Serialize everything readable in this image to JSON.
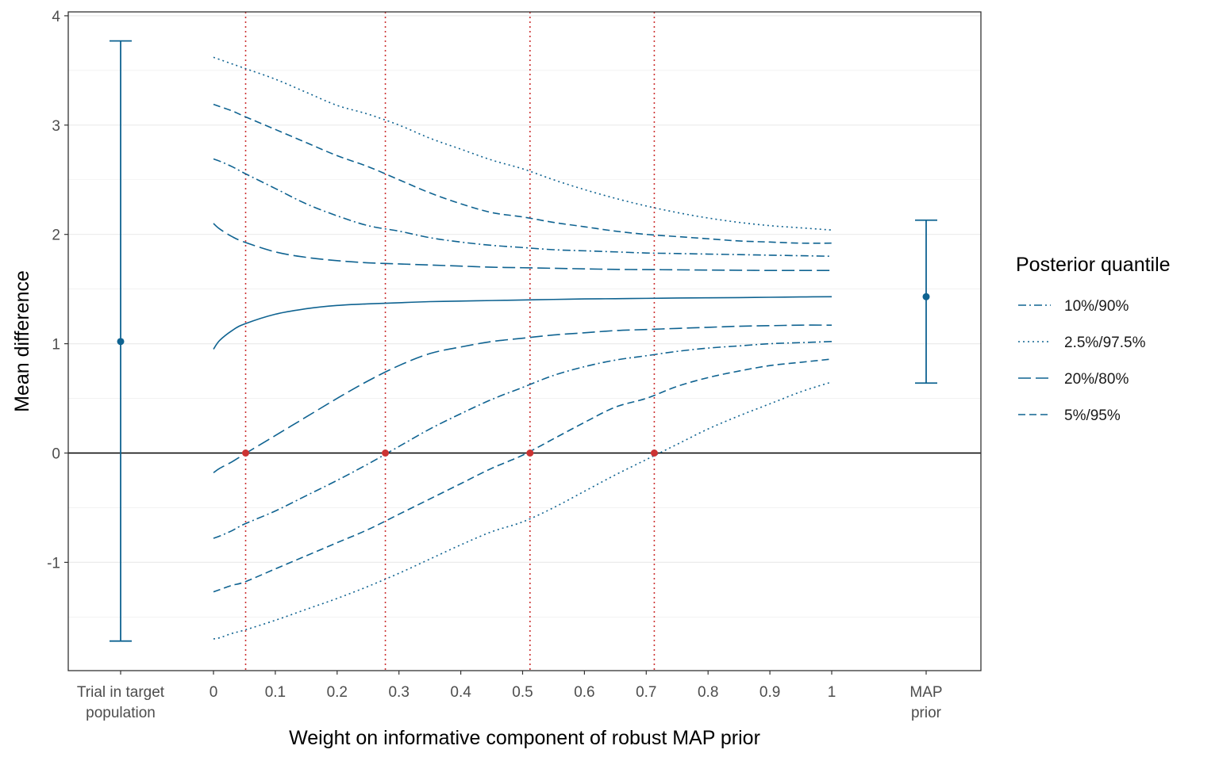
{
  "chart_data": {
    "type": "line",
    "title": "",
    "xlabel": "Weight on informative component of robust MAP prior",
    "ylabel": "Mean difference",
    "xlim": [
      0,
      1
    ],
    "ylim": [
      -1.98,
      4.05
    ],
    "grid": true,
    "legend_position": "right",
    "colors": {
      "series": "#0f6391",
      "crossing": "#cc3333",
      "zero_line": "#000000"
    },
    "x_ticks": [
      "0",
      "0.1",
      "0.2",
      "0.3",
      "0.4",
      "0.5",
      "0.6",
      "0.7",
      "0.8",
      "0.9",
      "1"
    ],
    "x_tick_values": [
      0,
      0.1,
      0.2,
      0.3,
      0.4,
      0.5,
      0.6,
      0.7,
      0.8,
      0.9,
      1
    ],
    "y_ticks": [
      "-1",
      "0",
      "1",
      "2",
      "3",
      "4"
    ],
    "y_tick_values": [
      -1,
      0,
      1,
      2,
      3,
      4
    ],
    "side_categories": {
      "left": [
        "Trial in target",
        "population"
      ],
      "right": [
        "MAP",
        "prior"
      ]
    },
    "error_bars": [
      {
        "side": "left",
        "estimate": 1.02,
        "lower": -1.72,
        "upper": 3.77
      },
      {
        "side": "right",
        "estimate": 1.43,
        "lower": 0.64,
        "upper": 2.13
      }
    ],
    "x": [
      0,
      0.01,
      0.03,
      0.05,
      0.1,
      0.15,
      0.2,
      0.25,
      0.3,
      0.35,
      0.4,
      0.45,
      0.5,
      0.55,
      0.6,
      0.65,
      0.7,
      0.75,
      0.8,
      0.85,
      0.9,
      0.95,
      1.0
    ],
    "legend": {
      "title": "Posterior quantile",
      "entries": [
        {
          "label": "10%/90%",
          "dash": "10,4,2,4"
        },
        {
          "label": "2.5%/97.5%",
          "dash": "2,4"
        },
        {
          "label": "20%/80%",
          "dash": "16,6"
        },
        {
          "label": "5%/95%",
          "dash": "9,5"
        }
      ]
    },
    "series": [
      {
        "quantile": "median",
        "dash": "",
        "values": [
          0.95,
          1.03,
          1.12,
          1.18,
          1.27,
          1.32,
          1.35,
          1.365,
          1.375,
          1.385,
          1.39,
          1.395,
          1.4,
          1.405,
          1.41,
          1.412,
          1.415,
          1.418,
          1.42,
          1.422,
          1.425,
          1.428,
          1.43
        ]
      },
      {
        "quantile": "2.5%/97.5%",
        "dash": "2,4",
        "values": [
          3.62,
          3.6,
          3.56,
          3.52,
          3.42,
          3.3,
          3.18,
          3.1,
          3.0,
          2.88,
          2.78,
          2.68,
          2.6,
          2.5,
          2.41,
          2.33,
          2.26,
          2.2,
          2.15,
          2.11,
          2.08,
          2.06,
          2.04
        ]
      },
      {
        "quantile": "2.5%/97.5%",
        "dash": "2,4",
        "values": [
          -1.7,
          -1.69,
          -1.65,
          -1.62,
          -1.53,
          -1.43,
          -1.33,
          -1.22,
          -1.1,
          -0.97,
          -0.84,
          -0.72,
          -0.63,
          -0.5,
          -0.35,
          -0.2,
          -0.06,
          0.08,
          0.22,
          0.34,
          0.45,
          0.56,
          0.65
        ]
      },
      {
        "quantile": "5%/95%",
        "dash": "9,5",
        "values": [
          3.19,
          3.17,
          3.13,
          3.08,
          2.96,
          2.84,
          2.72,
          2.62,
          2.5,
          2.38,
          2.28,
          2.2,
          2.16,
          2.11,
          2.07,
          2.03,
          2.0,
          1.98,
          1.96,
          1.94,
          1.93,
          1.92,
          1.92
        ]
      },
      {
        "quantile": "5%/95%",
        "dash": "9,5",
        "values": [
          -1.27,
          -1.25,
          -1.21,
          -1.18,
          -1.06,
          -0.94,
          -0.82,
          -0.7,
          -0.56,
          -0.42,
          -0.28,
          -0.14,
          -0.02,
          0.13,
          0.28,
          0.42,
          0.5,
          0.61,
          0.69,
          0.75,
          0.8,
          0.83,
          0.86
        ]
      },
      {
        "quantile": "10%/90%",
        "dash": "10,4,2,4",
        "values": [
          2.69,
          2.67,
          2.62,
          2.56,
          2.42,
          2.28,
          2.17,
          2.08,
          2.03,
          1.97,
          1.93,
          1.9,
          1.88,
          1.86,
          1.85,
          1.84,
          1.83,
          1.825,
          1.82,
          1.815,
          1.81,
          1.805,
          1.8
        ]
      },
      {
        "quantile": "10%/90%",
        "dash": "10,4,2,4",
        "values": [
          -0.78,
          -0.76,
          -0.71,
          -0.65,
          -0.53,
          -0.39,
          -0.25,
          -0.1,
          0.06,
          0.22,
          0.36,
          0.49,
          0.6,
          0.71,
          0.79,
          0.85,
          0.89,
          0.93,
          0.96,
          0.98,
          1.0,
          1.01,
          1.02
        ]
      },
      {
        "quantile": "20%/80%",
        "dash": "16,6",
        "values": [
          2.1,
          2.05,
          1.98,
          1.93,
          1.84,
          1.79,
          1.76,
          1.74,
          1.73,
          1.72,
          1.71,
          1.7,
          1.695,
          1.69,
          1.685,
          1.68,
          1.678,
          1.676,
          1.674,
          1.672,
          1.67,
          1.67,
          1.67
        ]
      },
      {
        "quantile": "20%/80%",
        "dash": "16,6",
        "values": [
          -0.18,
          -0.14,
          -0.08,
          -0.01,
          0.16,
          0.33,
          0.5,
          0.66,
          0.8,
          0.91,
          0.97,
          1.02,
          1.05,
          1.08,
          1.1,
          1.12,
          1.13,
          1.14,
          1.15,
          1.16,
          1.165,
          1.17,
          1.17
        ]
      }
    ],
    "crossings": [
      {
        "x": 0.052,
        "y": 0
      },
      {
        "x": 0.278,
        "y": 0
      },
      {
        "x": 0.512,
        "y": 0
      },
      {
        "x": 0.713,
        "y": 0
      }
    ]
  }
}
